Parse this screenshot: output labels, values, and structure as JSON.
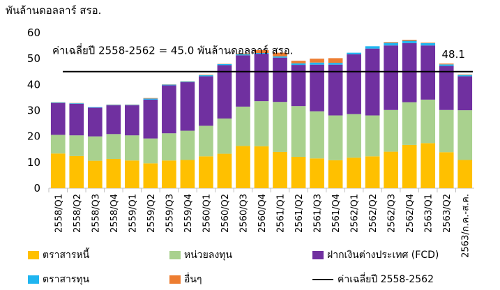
{
  "chart_data": {
    "type": "bar",
    "stacked": true,
    "unit": "พันล้านดอลลาร์ สรอ.",
    "ylim": [
      0,
      60
    ],
    "yticks": [
      "0",
      "10",
      "20",
      "30",
      "40",
      "50",
      "60"
    ],
    "categories": [
      "2558/Q1",
      "2558/Q2",
      "2558/Q3",
      "2558/Q4",
      "2559/Q1",
      "2559/Q2",
      "2559/Q3",
      "2559/Q4",
      "2560/Q1",
      "2560/Q2",
      "2560/Q3",
      "2560/Q4",
      "2561/Q1",
      "2561/Q2",
      "2561/Q3",
      "2561/Q4",
      "2562/Q1",
      "2562/Q2",
      "2562/Q3",
      "2562/Q4",
      "2563/Q1",
      "2563/Q2",
      "2563/ก.ค.-ส.ค."
    ],
    "series": [
      {
        "name": "ตราสารหนี้",
        "color": "#FFC000",
        "values": [
          13.4,
          12.4,
          10.6,
          11.3,
          10.7,
          9.6,
          10.7,
          10.9,
          12.3,
          13.3,
          16.3,
          16.2,
          14.0,
          12.1,
          11.5,
          10.8,
          11.8,
          12.3,
          14.1,
          16.7,
          17.4,
          13.9,
          10.9
        ]
      },
      {
        "name": "หน่วยลงทุน",
        "color": "#A9D18E",
        "values": [
          7.2,
          8.0,
          9.4,
          9.6,
          9.7,
          9.6,
          10.5,
          11.3,
          11.8,
          13.6,
          15.2,
          17.4,
          19.3,
          19.6,
          18.2,
          17.3,
          16.8,
          15.8,
          16.1,
          16.5,
          16.8,
          16.3,
          19.2
        ]
      },
      {
        "name": "ฝากเงินต่างประเทศ (FCD)",
        "color": "#7030A0",
        "values": [
          12.3,
          12.2,
          11.1,
          11.1,
          11.6,
          15.0,
          18.5,
          18.7,
          19.1,
          20.6,
          19.8,
          18.3,
          17.1,
          15.9,
          18.0,
          19.6,
          23.1,
          25.8,
          24.9,
          22.8,
          20.9,
          17.0,
          13.1
        ]
      },
      {
        "name": "ตราสารทุน",
        "color": "#1FB5F0",
        "values": [
          0.2,
          0.2,
          0.2,
          0.2,
          0.2,
          0.4,
          0.3,
          0.3,
          0.4,
          0.4,
          0.4,
          0.3,
          0.5,
          0.6,
          0.8,
          0.7,
          0.6,
          0.9,
          1.0,
          0.9,
          0.9,
          0.6,
          0.5
        ]
      },
      {
        "name": "อื่นๆ",
        "color": "#ED7D31",
        "values": [
          0.1,
          0.1,
          0.0,
          0.1,
          0.1,
          0.2,
          0.1,
          0.1,
          0.2,
          0.1,
          0.3,
          1.1,
          1.4,
          1.0,
          1.5,
          1.8,
          0.0,
          0.0,
          0.3,
          0.4,
          0.2,
          0.3,
          0.2
        ]
      }
    ],
    "average_line": {
      "name": "ค่าเฉลี่ยปี 2558-2562",
      "value": 45.0,
      "color": "#000000"
    },
    "annotation_text": "ค่าเฉลี่ยปี 2558-2562 = 45.0 พันล้านดอลลาร์ สรอ.",
    "last_point_label": "48.1"
  },
  "legend": {
    "items": [
      {
        "label": "ตราสารหนี้",
        "color": "#FFC000"
      },
      {
        "label": "หน่วยลงทุน",
        "color": "#A9D18E"
      },
      {
        "label": "ฝากเงินต่างประเทศ (FCD)",
        "color": "#7030A0"
      },
      {
        "label": "ตราสารทุน",
        "color": "#1FB5F0"
      },
      {
        "label": "อื่นๆ",
        "color": "#ED7D31"
      },
      {
        "label": "ค่าเฉลี่ยปี 2558-2562",
        "color": "#000000"
      }
    ]
  }
}
